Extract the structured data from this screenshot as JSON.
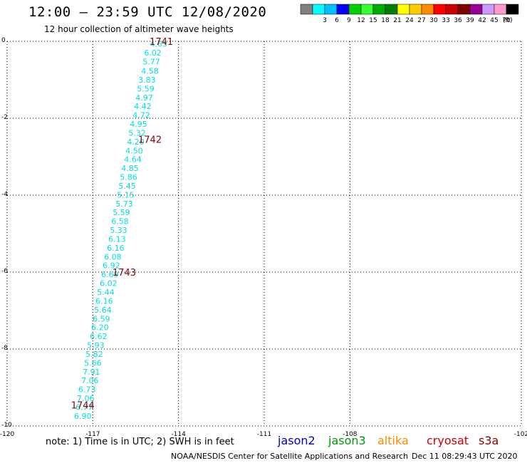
{
  "header": {
    "title": "12:00 – 23:59 UTC 12/08/2020",
    "subtitle": "12 hour collection of altimeter wave heights"
  },
  "colorbar": {
    "units": "(ft)",
    "bins": [
      {
        "label": "",
        "color": "#808080"
      },
      {
        "label": "3",
        "color": "#00ffff"
      },
      {
        "label": "6",
        "color": "#00bfff"
      },
      {
        "label": "9",
        "color": "#0000ff"
      },
      {
        "label": "12",
        "color": "#00d000"
      },
      {
        "label": "15",
        "color": "#33ff33"
      },
      {
        "label": "18",
        "color": "#00aa00"
      },
      {
        "label": "21",
        "color": "#008000"
      },
      {
        "label": "24",
        "color": "#ffff00"
      },
      {
        "label": "27",
        "color": "#ffcc00"
      },
      {
        "label": "30",
        "color": "#ff8c00"
      },
      {
        "label": "33",
        "color": "#ff0000"
      },
      {
        "label": "36",
        "color": "#cc0000"
      },
      {
        "label": "39",
        "color": "#800000"
      },
      {
        "label": "42",
        "color": "#990099"
      },
      {
        "label": "45",
        "color": "#cc99ff"
      },
      {
        "label": "70",
        "color": "#ff99cc"
      },
      {
        "label": "",
        "color": "#000000"
      }
    ]
  },
  "footer": {
    "note": "note: 1) Time is in UTC; 2) SWH is in feet",
    "satellites": [
      {
        "name": "jason2",
        "color": "#0000cc"
      },
      {
        "name": "jason3",
        "color": "#009900"
      },
      {
        "name": "altika",
        "color": "#ff8800"
      },
      {
        "name": "cryosat",
        "color": "#cc0000"
      },
      {
        "name": "s3a",
        "color": "#880000"
      }
    ],
    "credit": "NOAA/NESDIS Center for Satellite Applications and Research",
    "timestamp": "Dec 11 08:29:43 UTC 2020"
  },
  "chart_data": {
    "type": "scatter",
    "title": "12:00 – 23:59 UTC 12/08/2020",
    "xlim": [
      -120,
      -102
    ],
    "ylim": [
      -10,
      0
    ],
    "x_ticks": [
      "-120",
      "-117",
      "-114",
      "-111",
      "-108",
      "-102"
    ],
    "y_ticks": [
      "0",
      "-2",
      "-4",
      "-6",
      "-8",
      "-10"
    ],
    "grid": true,
    "value_color": "#00dddd",
    "time_color": "#880000",
    "swh_points": [
      {
        "lon": -114.7,
        "lat": -0.05,
        "swh": "4.65"
      },
      {
        "lon": -114.9,
        "lat": -0.28,
        "swh": "6.02"
      },
      {
        "lon": -114.95,
        "lat": -0.51,
        "swh": "5.77"
      },
      {
        "lon": -115.0,
        "lat": -0.75,
        "swh": "4.58"
      },
      {
        "lon": -115.1,
        "lat": -0.98,
        "swh": "3.83"
      },
      {
        "lon": -115.15,
        "lat": -1.21,
        "swh": "5.59"
      },
      {
        "lon": -115.2,
        "lat": -1.44,
        "swh": "4.97"
      },
      {
        "lon": -115.25,
        "lat": -1.67,
        "swh": "4.42"
      },
      {
        "lon": -115.3,
        "lat": -1.9,
        "swh": "4.72"
      },
      {
        "lon": -115.4,
        "lat": -2.13,
        "swh": "4.95"
      },
      {
        "lon": -115.45,
        "lat": -2.36,
        "swh": "5.32"
      },
      {
        "lon": -115.5,
        "lat": -2.59,
        "swh": "4.20"
      },
      {
        "lon": -115.55,
        "lat": -2.82,
        "swh": "4.50"
      },
      {
        "lon": -115.6,
        "lat": -3.05,
        "swh": "4.64"
      },
      {
        "lon": -115.7,
        "lat": -3.28,
        "swh": "4.85"
      },
      {
        "lon": -115.75,
        "lat": -3.51,
        "swh": "5.86"
      },
      {
        "lon": -115.8,
        "lat": -3.74,
        "swh": "5.45"
      },
      {
        "lon": -115.85,
        "lat": -3.97,
        "swh": "5.15"
      },
      {
        "lon": -115.9,
        "lat": -4.2,
        "swh": "5.73"
      },
      {
        "lon": -116.0,
        "lat": -4.43,
        "swh": "5.59"
      },
      {
        "lon": -116.05,
        "lat": -4.66,
        "swh": "6.58"
      },
      {
        "lon": -116.1,
        "lat": -4.89,
        "swh": "5.33"
      },
      {
        "lon": -116.15,
        "lat": -5.12,
        "swh": "6.13"
      },
      {
        "lon": -116.2,
        "lat": -5.35,
        "swh": "6.16"
      },
      {
        "lon": -116.3,
        "lat": -5.58,
        "swh": "6.08"
      },
      {
        "lon": -116.35,
        "lat": -5.81,
        "swh": "6.92"
      },
      {
        "lon": -116.4,
        "lat": -6.04,
        "swh": "6.69"
      },
      {
        "lon": -116.45,
        "lat": -6.27,
        "swh": "6.02"
      },
      {
        "lon": -116.55,
        "lat": -6.5,
        "swh": "5.44"
      },
      {
        "lon": -116.6,
        "lat": -6.73,
        "swh": "6.16"
      },
      {
        "lon": -116.65,
        "lat": -6.96,
        "swh": "5.64"
      },
      {
        "lon": -116.7,
        "lat": -7.19,
        "swh": "6.59"
      },
      {
        "lon": -116.75,
        "lat": -7.42,
        "swh": "6.20"
      },
      {
        "lon": -116.8,
        "lat": -7.65,
        "swh": "6.62"
      },
      {
        "lon": -116.9,
        "lat": -7.88,
        "swh": "5.93"
      },
      {
        "lon": -116.95,
        "lat": -8.11,
        "swh": "5.82"
      },
      {
        "lon": -117.0,
        "lat": -8.34,
        "swh": "5.66"
      },
      {
        "lon": -117.05,
        "lat": -8.57,
        "swh": "7.91"
      },
      {
        "lon": -117.1,
        "lat": -8.8,
        "swh": "7.06"
      },
      {
        "lon": -117.2,
        "lat": -9.03,
        "swh": "6.73"
      },
      {
        "lon": -117.25,
        "lat": -9.26,
        "swh": "7.06"
      },
      {
        "lon": -117.3,
        "lat": -9.49,
        "swh": "6.77"
      },
      {
        "lon": -117.35,
        "lat": -9.72,
        "swh": "6.90"
      }
    ],
    "time_labels": [
      {
        "lon": -114.6,
        "lat": 0.0,
        "time": "1741"
      },
      {
        "lon": -115.0,
        "lat": -2.55,
        "time": "1742"
      },
      {
        "lon": -115.9,
        "lat": -6.0,
        "time": "1743"
      },
      {
        "lon": -117.35,
        "lat": -9.45,
        "time": "1744"
      }
    ]
  }
}
